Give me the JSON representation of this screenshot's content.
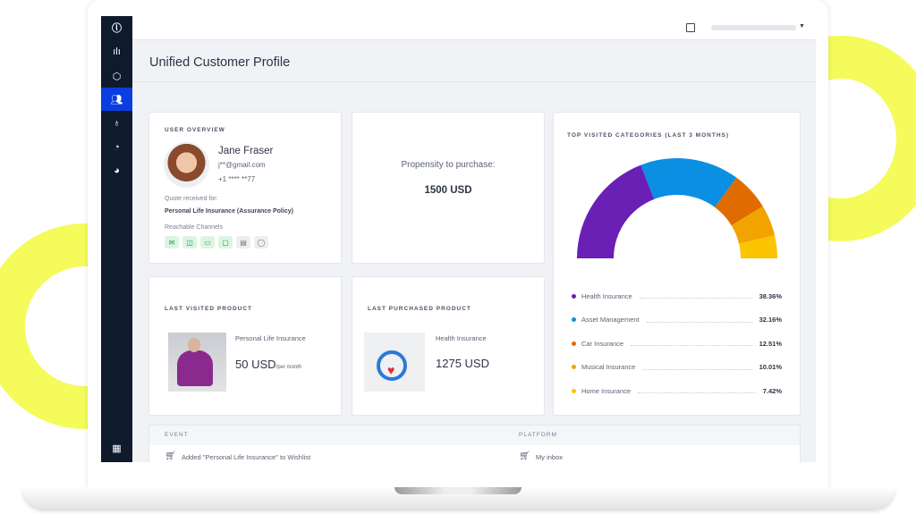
{
  "page": {
    "title": "Unified Customer Profile"
  },
  "sidebar": {
    "items": [
      {
        "icon": "logo-icon"
      },
      {
        "icon": "bar-chart-icon"
      },
      {
        "icon": "shield-icon"
      },
      {
        "icon": "users-icon",
        "active": true
      },
      {
        "icon": "lightbulb-icon"
      },
      {
        "icon": "gauge-icon"
      },
      {
        "icon": "pie-icon"
      },
      {
        "icon": "grid-icon"
      }
    ]
  },
  "user": {
    "caption": "USER OVERVIEW",
    "name": "Jane Fraser",
    "email": "j**@gmail.com",
    "phone": "+1 **** **77",
    "quote_label": "Quote received for:",
    "quote_value": "Personal Life Insurance (Assurance Policy)",
    "channels_label": "Reachable Channels",
    "channels": [
      {
        "icon": "email-icon",
        "active": true
      },
      {
        "icon": "id-card-icon",
        "active": true
      },
      {
        "icon": "sms-icon",
        "active": true
      },
      {
        "icon": "chat-icon",
        "active": true
      },
      {
        "icon": "contact-icon",
        "active": false
      },
      {
        "icon": "whatsapp-icon",
        "active": false
      }
    ]
  },
  "propensity": {
    "label": "Propensity to purchase:",
    "value": "1500 USD"
  },
  "last_visited": {
    "caption": "LAST VISITED PRODUCT",
    "name": "Personal Life Insurance",
    "price": "50 USD",
    "unit": "/per month"
  },
  "last_purchased": {
    "caption": "LAST PURCHASED PRODUCT",
    "name": "Health Insurance",
    "price": "1275 USD"
  },
  "chart_data": {
    "type": "pie",
    "variant": "semi-donut",
    "title": "TOP VISITED CATEGORIES (LAST 3 MONTHS)",
    "categories": [
      "Health Insurance",
      "Asset Management",
      "Car Insurance",
      "Musical Insurance",
      "Home Insurance"
    ],
    "values": [
      38.36,
      32.16,
      12.51,
      10.01,
      7.42
    ],
    "labels": [
      "38.36%",
      "32.16%",
      "12.51%",
      "10.01%",
      "7.42%"
    ],
    "colors": [
      "#6a1fb5",
      "#0b8fe3",
      "#e06c00",
      "#f2a300",
      "#fcc400"
    ],
    "legend": "bottom"
  },
  "table": {
    "headers": [
      "EVENT",
      "PLATFORM"
    ],
    "rows": [
      {
        "event": "Added \"Personal Life Insurance\" to Wishlist",
        "platform": "My inbox"
      }
    ]
  }
}
